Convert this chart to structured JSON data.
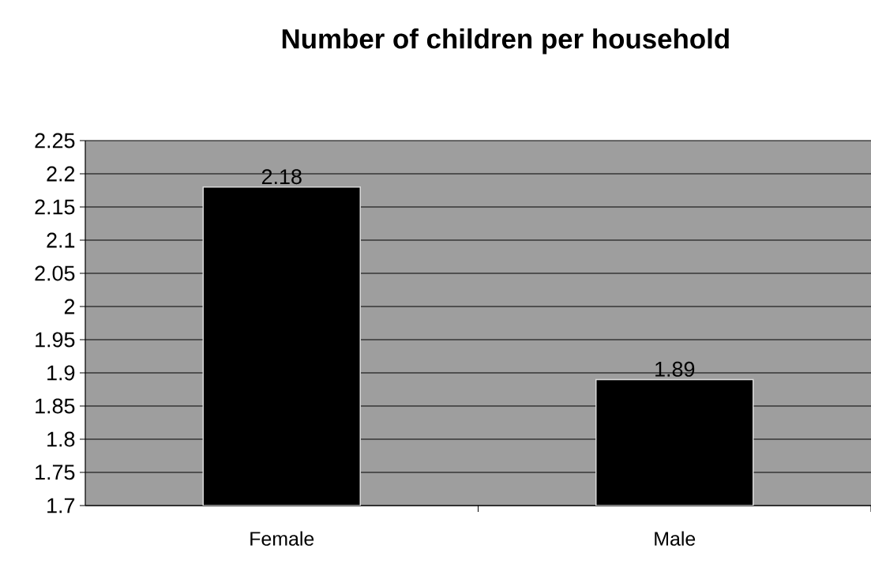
{
  "chart_data": {
    "type": "bar",
    "title": "Number of children per household",
    "categories": [
      "Female",
      "Male"
    ],
    "values": [
      2.18,
      1.89
    ],
    "color": "#000000",
    "ylim": [
      1.7,
      2.25
    ],
    "yticks": [
      1.7,
      1.75,
      1.8,
      1.85,
      1.9,
      1.95,
      2,
      2.05,
      2.1,
      2.15,
      2.2,
      2.25
    ],
    "grid": "y",
    "data_labels": true
  }
}
